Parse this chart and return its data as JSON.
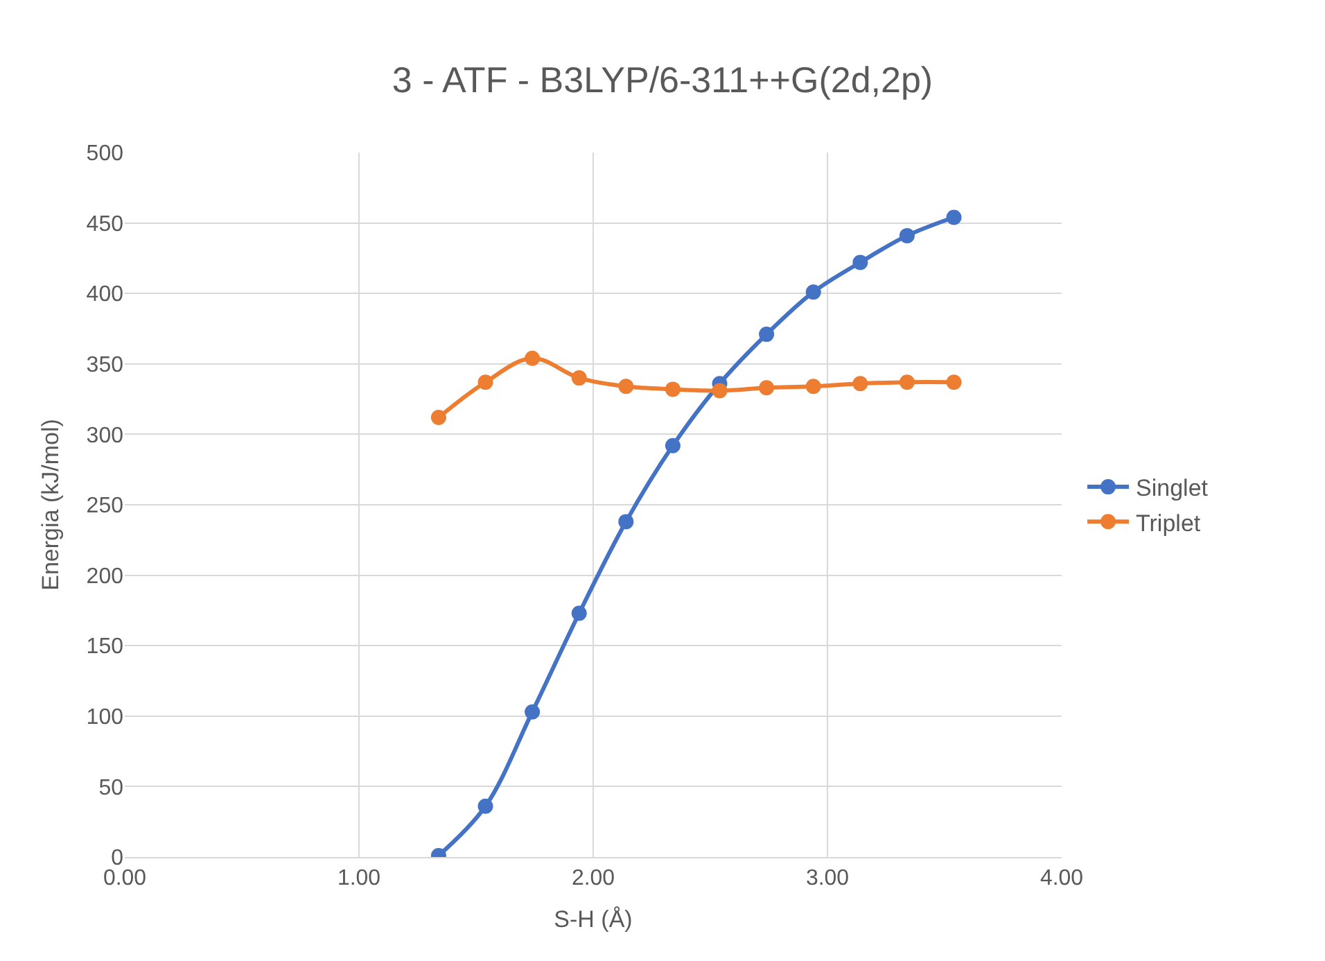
{
  "chart_data": {
    "type": "line",
    "title": "3 - ATF - B3LYP/6-311++G(2d,2p)",
    "xlabel": "S-H (Å)",
    "ylabel": "Energia (kJ/mol)",
    "x": [
      1.34,
      1.54,
      1.74,
      1.94,
      2.14,
      2.34,
      2.54,
      2.74,
      2.94,
      3.14,
      3.34,
      3.54
    ],
    "series": [
      {
        "name": "Singlet",
        "color": "#4472c4",
        "values": [
          1,
          36,
          103,
          173,
          238,
          292,
          336,
          371,
          401,
          422,
          441,
          454
        ]
      },
      {
        "name": "Triplet",
        "color": "#ed7d31",
        "values": [
          312,
          337,
          354,
          340,
          334,
          332,
          331,
          333,
          334,
          336,
          337,
          337
        ]
      }
    ],
    "xlim": [
      0,
      4
    ],
    "xticks": [
      {
        "value": 0,
        "label": "0.00"
      },
      {
        "value": 1,
        "label": "1.00"
      },
      {
        "value": 2,
        "label": "2.00"
      },
      {
        "value": 3,
        "label": "3.00"
      },
      {
        "value": 4,
        "label": "4.00"
      }
    ],
    "ylim": [
      0,
      500
    ],
    "yticks": [
      0,
      50,
      100,
      150,
      200,
      250,
      300,
      350,
      400,
      450,
      500
    ],
    "grid": true,
    "legend": "right",
    "marker": "circle",
    "line_style": "solid"
  }
}
